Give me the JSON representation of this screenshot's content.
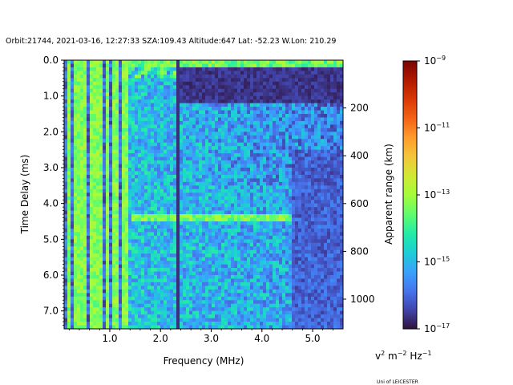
{
  "chart_data": {
    "type": "heatmap",
    "title": "Orbit:21744, 2021-03-16, 12:27:33 SZA:109.43 Altitude:647 Lat: -52.23 W.Lon: 210.29",
    "xlabel": "Frequency (MHz)",
    "ylabel": "Time Delay (ms)",
    "y2label": "Apparent range (km)",
    "xlim": [
      0.1,
      5.6
    ],
    "ylim": [
      7.5,
      0.0
    ],
    "x_ticks": [
      {
        "value": 1.0,
        "label": "1.0"
      },
      {
        "value": 2.0,
        "label": "2.0"
      },
      {
        "value": 3.0,
        "label": "3.0"
      },
      {
        "value": 4.0,
        "label": "4.0"
      },
      {
        "value": 5.0,
        "label": "5.0"
      }
    ],
    "y_ticks": [
      {
        "value": 0.0,
        "label": "0.0"
      },
      {
        "value": 1.0,
        "label": "1.0"
      },
      {
        "value": 2.0,
        "label": "2.0"
      },
      {
        "value": 3.0,
        "label": "3.0"
      },
      {
        "value": 4.0,
        "label": "4.0"
      },
      {
        "value": 5.0,
        "label": "5.0"
      },
      {
        "value": 6.0,
        "label": "6.0"
      },
      {
        "value": 7.0,
        "label": "7.0"
      }
    ],
    "y2_ticks": [
      {
        "value": 200,
        "label": "200"
      },
      {
        "value": 400,
        "label": "400"
      },
      {
        "value": 600,
        "label": "600"
      },
      {
        "value": 800,
        "label": "800"
      },
      {
        "value": 1000,
        "label": "1000"
      }
    ],
    "colorbar": {
      "colormap": "turbo",
      "scale": "log",
      "range": [
        1e-17,
        1e-09
      ],
      "ticks": [
        {
          "value": 1e-09,
          "base": "10",
          "exp": "−9"
        },
        {
          "value": 1e-11,
          "base": "10",
          "exp": "−11"
        },
        {
          "value": 1e-13,
          "base": "10",
          "exp": "−13"
        },
        {
          "value": 1e-15,
          "base": "10",
          "exp": "−15"
        },
        {
          "value": 1e-17,
          "base": "10",
          "exp": "−17"
        }
      ],
      "colors": [
        "#30123b",
        "#4145ab",
        "#4675ed",
        "#39a2fc",
        "#1bcfd4",
        "#24eca6",
        "#61fc6c",
        "#a4fc3b",
        "#d1e834",
        "#f3c63a",
        "#fe9b2d",
        "#f36315",
        "#d93806",
        "#b11901",
        "#7a0402"
      ]
    },
    "grid": false,
    "features": {
      "vertical_streaks_mhz": [
        0.2,
        0.35,
        0.5,
        0.65,
        0.8,
        0.95,
        1.1,
        1.3
      ],
      "horizontal_echo_ms": 4.4,
      "dark_column_mhz": 2.35
    }
  },
  "units_label": {
    "v": "v",
    "v_exp": "2",
    "m": " m",
    "m_exp": "−2",
    "hz": " Hz",
    "hz_exp": "−1"
  },
  "footer": {
    "credit": "Uni of LEICESTER"
  }
}
